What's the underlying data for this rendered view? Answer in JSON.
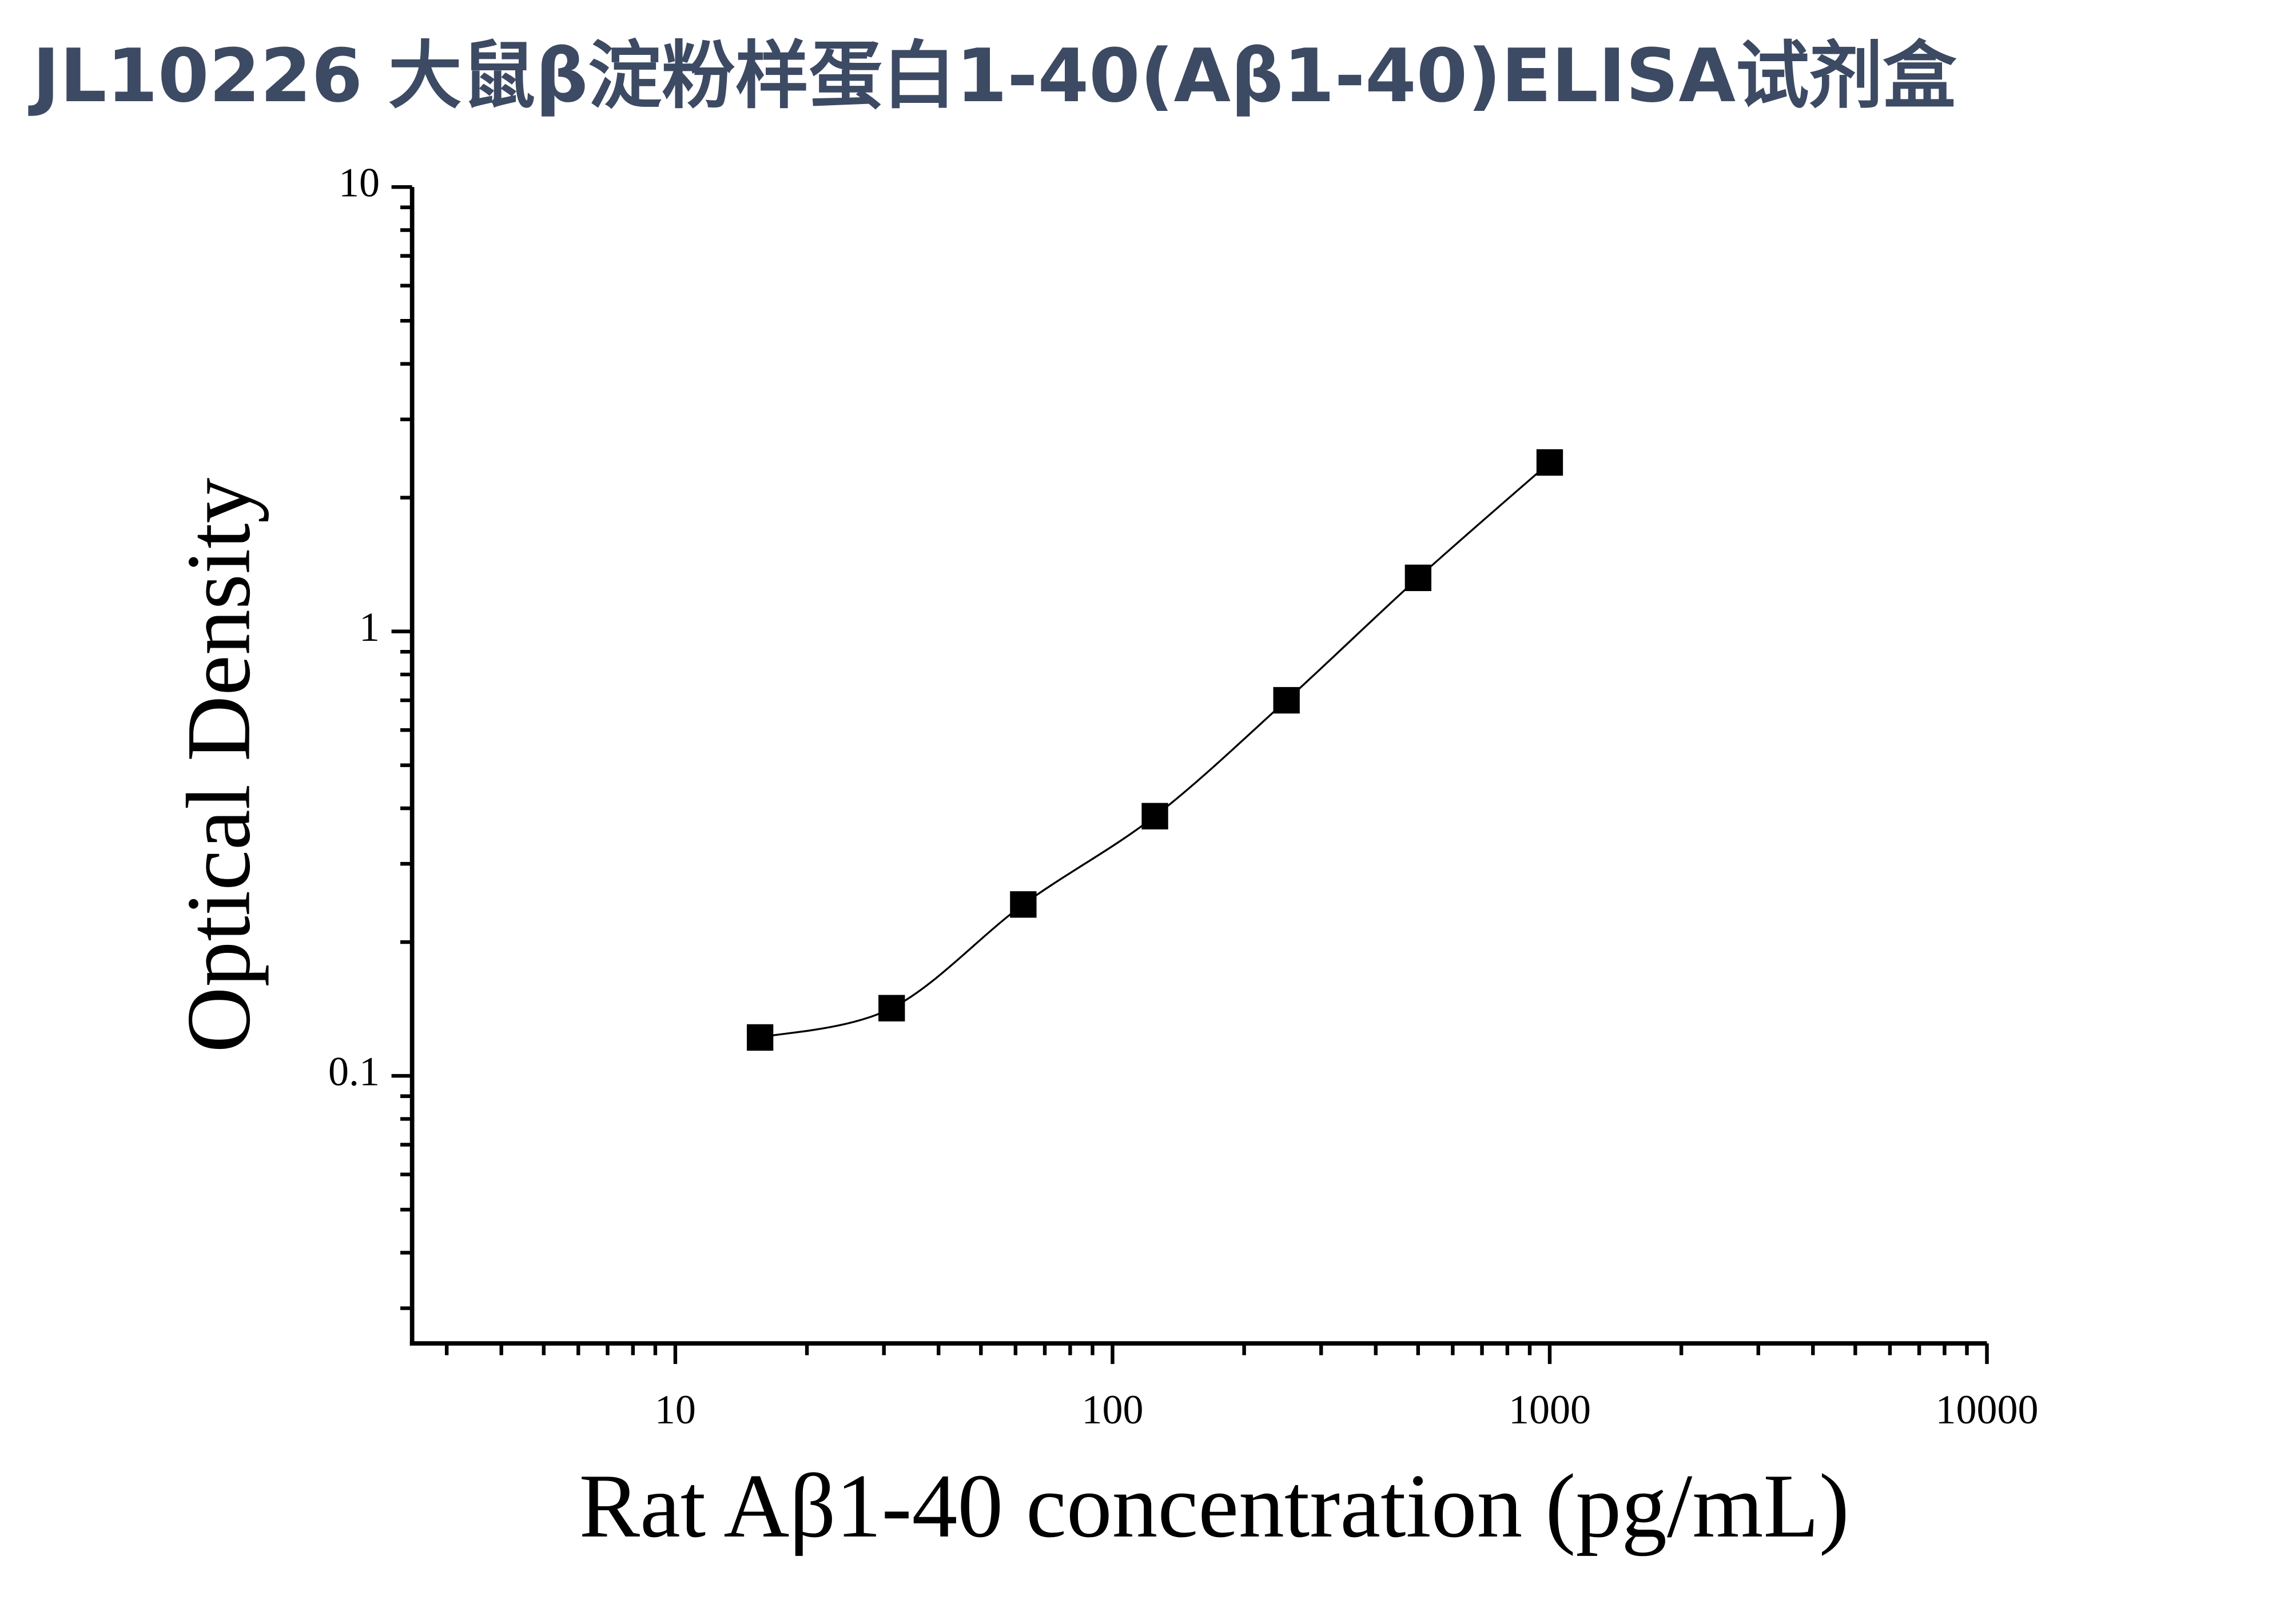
{
  "chart_data": {
    "type": "scatter",
    "title": "JL10226 大鼠β淀粉样蛋白1-40(Aβ1-40)ELISA试剂盒",
    "x_label": "Rat Aβ1-40 concentration (pg/mL)",
    "y_label": "Optical Density",
    "x_log": true,
    "y_log": true,
    "xlim": [
      2.5,
      10000
    ],
    "ylim": [
      0.025,
      10
    ],
    "xticks": [
      10,
      100,
      1000,
      10000
    ],
    "yticks": [
      0.1,
      1,
      10
    ],
    "xminorticks": [
      3,
      4,
      5,
      6,
      7,
      8,
      9,
      20,
      30,
      40,
      50,
      60,
      70,
      80,
      90,
      200,
      300,
      400,
      500,
      600,
      700,
      800,
      900,
      2000,
      3000,
      4000,
      5000,
      6000,
      7000,
      8000,
      9000
    ],
    "yminorticks": [
      0.03,
      0.04,
      0.05,
      0.06,
      0.07,
      0.08,
      0.09,
      0.2,
      0.3,
      0.4,
      0.5,
      0.6,
      0.7,
      0.8,
      0.9,
      2,
      3,
      4,
      5,
      6,
      7,
      8,
      9
    ],
    "fit_line": true,
    "color": "#000000",
    "x": [
      15.625,
      31.25,
      62.5,
      125,
      250,
      500,
      1000
    ],
    "values": [
      0.122,
      0.142,
      0.243,
      0.384,
      0.7,
      1.32,
      2.4
    ]
  }
}
